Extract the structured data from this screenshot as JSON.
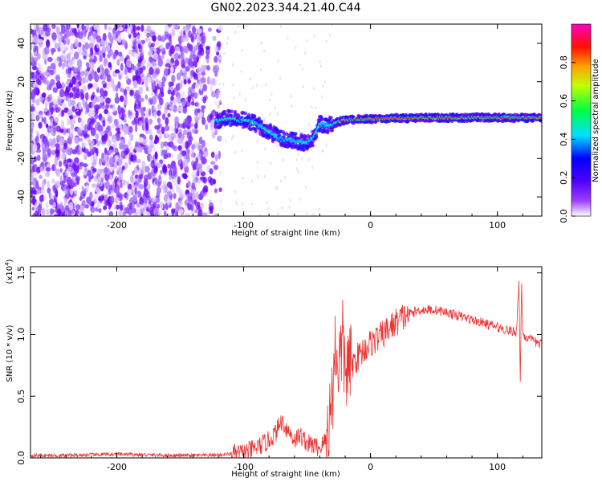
{
  "title": "GN02.2023.344.21.40.C44",
  "chart_data": [
    {
      "type": "heatmap",
      "xlabel": "Height of straight line (km)",
      "ylabel": "Frequency (Hz)",
      "xlim": [
        -268,
        135
      ],
      "ylim": [
        -50,
        50
      ],
      "x_ticks": [
        "-200",
        "-100",
        "0",
        "100"
      ],
      "y_ticks": [
        "-40",
        "-20",
        "0",
        "20",
        "40"
      ],
      "colorbar": {
        "label": "Normalized spectral amplitude",
        "range": [
          0.0,
          1.0
        ],
        "ticks": [
          "0.0",
          "0.2",
          "0.4",
          "0.6",
          "0.8"
        ],
        "colors": [
          "#ffffff",
          "#7b00ff",
          "#0000ff",
          "#00ffff",
          "#00ff00",
          "#ffff00",
          "#ff8000",
          "#ff0000",
          "#ff00ff"
        ]
      },
      "ridge": {
        "x": [
          -120,
          -110,
          -100,
          -90,
          -80,
          -70,
          -60,
          -50,
          -45,
          -40,
          -35,
          -30,
          -20,
          -10,
          0,
          10,
          20,
          30,
          40,
          50,
          60,
          70,
          80,
          90,
          100,
          110,
          120,
          130
        ],
        "y": [
          0,
          1,
          0,
          -2,
          -6,
          -10,
          -11,
          -12,
          -9,
          -2,
          -3,
          -2,
          0,
          0.5,
          0.5,
          0.8,
          1,
          1,
          1.2,
          1.2,
          1.2,
          1.2,
          1.3,
          1.3,
          1.2,
          1.2,
          1.2,
          1.2
        ]
      }
    },
    {
      "type": "line",
      "xlabel": "Height of straight line (km)",
      "ylabel": "SNR (10 * v/v)",
      "multiplier": "(x10",
      "multiplier_exp": "4",
      "multiplier_close": ")",
      "xlim": [
        -268,
        135
      ],
      "ylim": [
        0,
        1.55
      ],
      "x_ticks": [
        "-200",
        "-100",
        "0",
        "100"
      ],
      "y_ticks": [
        "0.0",
        "0.5",
        "1.0",
        "1.5"
      ],
      "color": "#ee3333",
      "series": [
        {
          "x": [
            -268,
            -240,
            -200,
            -160,
            -130,
            -110,
            -100,
            -90,
            -80,
            -75,
            -70,
            -65,
            -60,
            -55,
            -50,
            -45,
            -40,
            -35,
            -30,
            -28,
            -25,
            -22,
            -20,
            -15,
            -10,
            -5,
            0,
            10,
            20,
            30,
            40,
            50,
            60,
            70,
            80,
            90,
            100,
            110,
            115,
            117,
            118,
            119,
            120,
            125,
            135
          ],
          "y": [
            0.02,
            0.02,
            0.03,
            0.02,
            0.02,
            0.03,
            0.04,
            0.08,
            0.14,
            0.2,
            0.3,
            0.22,
            0.15,
            0.18,
            0.12,
            0.1,
            0.08,
            0.15,
            0.5,
            0.9,
            0.75,
            0.95,
            0.7,
            0.75,
            0.82,
            0.88,
            0.93,
            1.0,
            1.1,
            1.17,
            1.2,
            1.2,
            1.18,
            1.15,
            1.12,
            1.09,
            1.06,
            1.03,
            1.02,
            1.45,
            0.55,
            1.45,
            1.0,
            0.96,
            0.92
          ]
        }
      ]
    }
  ]
}
